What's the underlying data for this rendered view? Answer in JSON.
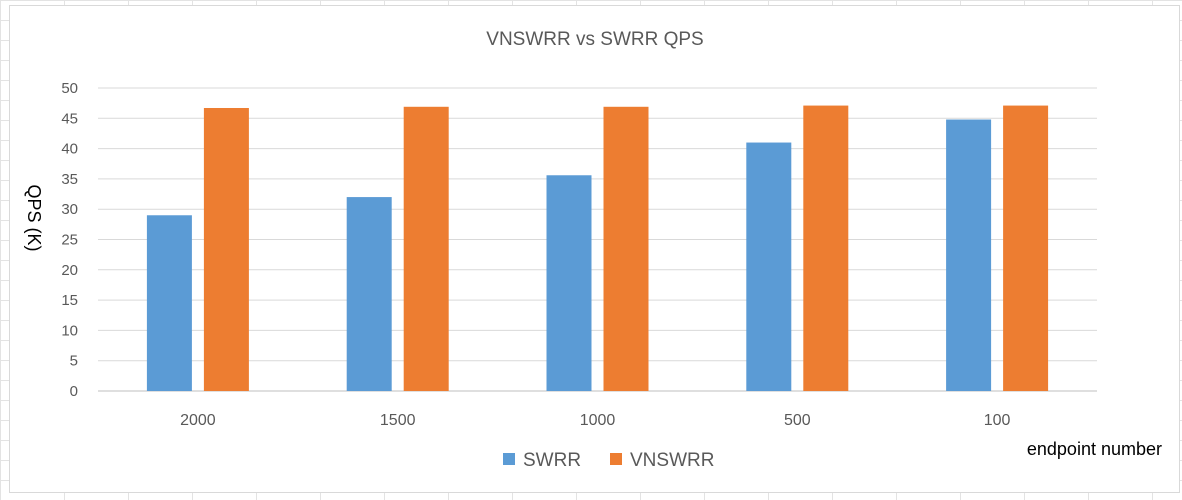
{
  "chart_data": {
    "type": "bar",
    "title": "VNSWRR vs SWRR QPS",
    "xlabel": "endpoint number",
    "ylabel": "QPS (K)",
    "categories": [
      "2000",
      "1500",
      "1000",
      "500",
      "100"
    ],
    "series": [
      {
        "name": "SWRR",
        "values": [
          29,
          32,
          35.6,
          41,
          44.8
        ],
        "color": "#5b9bd5"
      },
      {
        "name": "VNSWRR",
        "values": [
          46.7,
          46.9,
          46.9,
          47.1,
          47.1
        ],
        "color": "#ed7d31"
      }
    ],
    "ylim": [
      0,
      50
    ],
    "yticks": [
      0,
      5,
      10,
      15,
      20,
      25,
      30,
      35,
      40,
      45,
      50
    ],
    "grid": true,
    "legend": "bottom"
  }
}
